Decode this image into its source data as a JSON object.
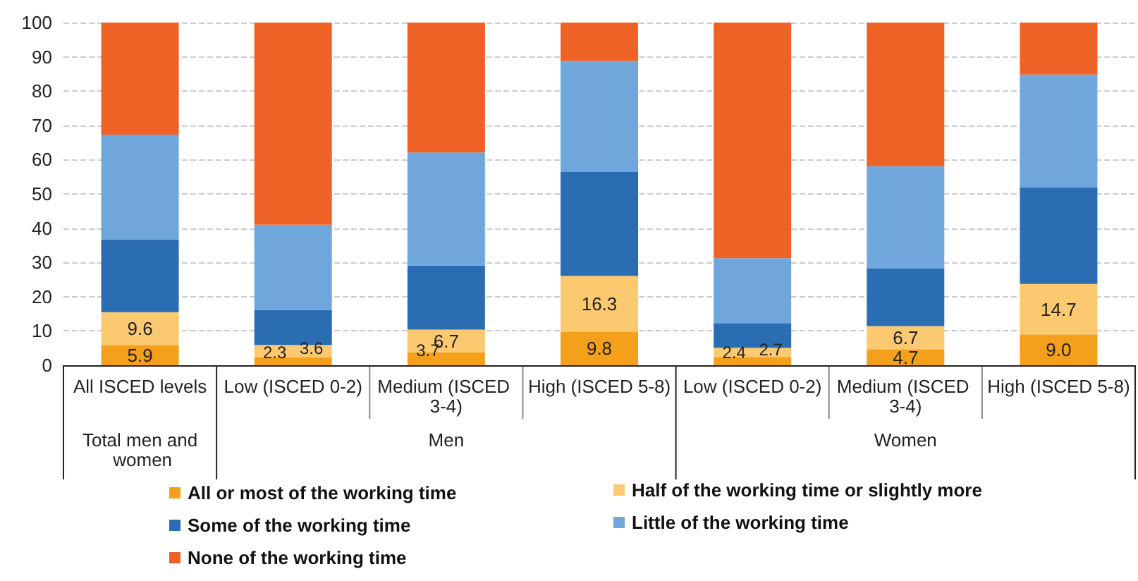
{
  "chart_data": {
    "type": "bar",
    "stacked": true,
    "categories": [
      "All ISCED levels",
      "Low (ISCED 0-2)",
      "Medium (ISCED 3-4)",
      "High (ISCED 5-8)",
      "Low (ISCED 0-2)",
      "Medium (ISCED 3-4)",
      "High (ISCED 5-8)"
    ],
    "annotations": [
      "Total men and women",
      "Men",
      "Women"
    ],
    "ylim": [
      0,
      100
    ],
    "yticks": [
      0,
      10,
      20,
      30,
      40,
      50,
      60,
      70,
      80,
      90,
      100
    ],
    "grid": "y",
    "legend": "bottom",
    "series": [
      {
        "name": "All or most of the working time",
        "color": "#f5a01a",
        "values": [
          5.9,
          2.3,
          3.7,
          9.8,
          2.4,
          4.7,
          9.0
        ],
        "value_labels": [
          "5.9",
          "2.3",
          "3.7",
          "9.8",
          "2.4",
          "4.7",
          "9.0"
        ]
      },
      {
        "name": "Half of the working time or slightly more",
        "color": "#fbc96f",
        "values": [
          9.6,
          3.6,
          6.7,
          16.3,
          2.7,
          6.7,
          14.7
        ],
        "value_labels": [
          "9.6",
          "3.6",
          "6.7",
          "16.3",
          "2.7",
          "6.7",
          "14.7"
        ]
      },
      {
        "name": "Some of the working time",
        "color": "#2a6db2",
        "values": [
          21.1,
          10.2,
          18.7,
          30.3,
          7.2,
          16.8,
          28.2
        ]
      },
      {
        "name": "Little of the working time",
        "color": "#6fa6dc",
        "values": [
          30.7,
          24.9,
          33.0,
          32.4,
          18.9,
          29.9,
          32.9
        ]
      },
      {
        "name": "None of the working time",
        "color": "#ee6325",
        "values": [
          32.7,
          59.0,
          37.9,
          11.2,
          68.8,
          41.9,
          15.2
        ]
      }
    ]
  }
}
